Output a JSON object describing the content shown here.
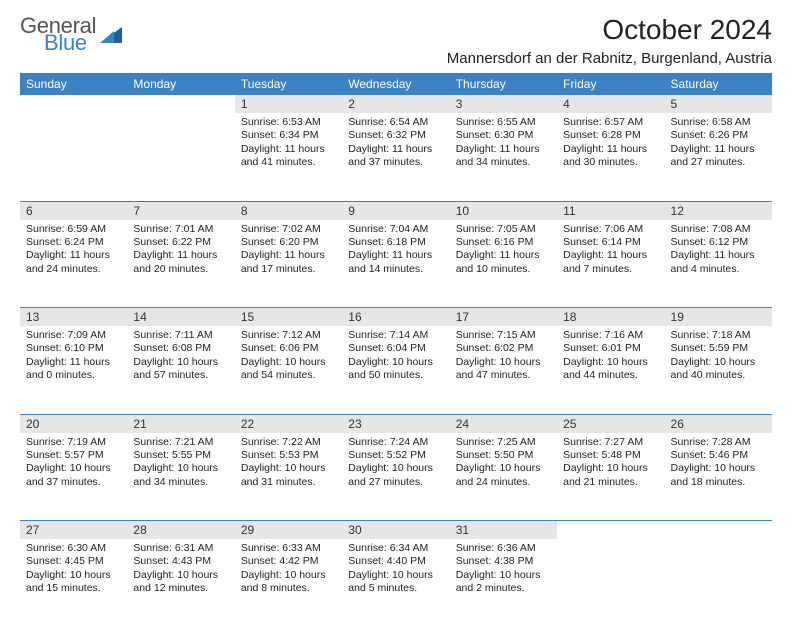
{
  "logo": {
    "general": "General",
    "blue": "Blue"
  },
  "colors": {
    "accent": "#3b82c4",
    "daynum_bg": "#e6e6e6",
    "text": "#222222",
    "bg": "#ffffff"
  },
  "title": "October 2024",
  "location": "Mannersdorf an der Rabnitz, Burgenland, Austria",
  "weekdays": [
    "Sunday",
    "Monday",
    "Tuesday",
    "Wednesday",
    "Thursday",
    "Friday",
    "Saturday"
  ],
  "weeks": [
    [
      null,
      null,
      {
        "n": "1",
        "sr": "Sunrise: 6:53 AM",
        "ss": "Sunset: 6:34 PM",
        "d1": "Daylight: 11 hours",
        "d2": "and 41 minutes."
      },
      {
        "n": "2",
        "sr": "Sunrise: 6:54 AM",
        "ss": "Sunset: 6:32 PM",
        "d1": "Daylight: 11 hours",
        "d2": "and 37 minutes."
      },
      {
        "n": "3",
        "sr": "Sunrise: 6:55 AM",
        "ss": "Sunset: 6:30 PM",
        "d1": "Daylight: 11 hours",
        "d2": "and 34 minutes."
      },
      {
        "n": "4",
        "sr": "Sunrise: 6:57 AM",
        "ss": "Sunset: 6:28 PM",
        "d1": "Daylight: 11 hours",
        "d2": "and 30 minutes."
      },
      {
        "n": "5",
        "sr": "Sunrise: 6:58 AM",
        "ss": "Sunset: 6:26 PM",
        "d1": "Daylight: 11 hours",
        "d2": "and 27 minutes."
      }
    ],
    [
      {
        "n": "6",
        "sr": "Sunrise: 6:59 AM",
        "ss": "Sunset: 6:24 PM",
        "d1": "Daylight: 11 hours",
        "d2": "and 24 minutes."
      },
      {
        "n": "7",
        "sr": "Sunrise: 7:01 AM",
        "ss": "Sunset: 6:22 PM",
        "d1": "Daylight: 11 hours",
        "d2": "and 20 minutes."
      },
      {
        "n": "8",
        "sr": "Sunrise: 7:02 AM",
        "ss": "Sunset: 6:20 PM",
        "d1": "Daylight: 11 hours",
        "d2": "and 17 minutes."
      },
      {
        "n": "9",
        "sr": "Sunrise: 7:04 AM",
        "ss": "Sunset: 6:18 PM",
        "d1": "Daylight: 11 hours",
        "d2": "and 14 minutes."
      },
      {
        "n": "10",
        "sr": "Sunrise: 7:05 AM",
        "ss": "Sunset: 6:16 PM",
        "d1": "Daylight: 11 hours",
        "d2": "and 10 minutes."
      },
      {
        "n": "11",
        "sr": "Sunrise: 7:06 AM",
        "ss": "Sunset: 6:14 PM",
        "d1": "Daylight: 11 hours",
        "d2": "and 7 minutes."
      },
      {
        "n": "12",
        "sr": "Sunrise: 7:08 AM",
        "ss": "Sunset: 6:12 PM",
        "d1": "Daylight: 11 hours",
        "d2": "and 4 minutes."
      }
    ],
    [
      {
        "n": "13",
        "sr": "Sunrise: 7:09 AM",
        "ss": "Sunset: 6:10 PM",
        "d1": "Daylight: 11 hours",
        "d2": "and 0 minutes."
      },
      {
        "n": "14",
        "sr": "Sunrise: 7:11 AM",
        "ss": "Sunset: 6:08 PM",
        "d1": "Daylight: 10 hours",
        "d2": "and 57 minutes."
      },
      {
        "n": "15",
        "sr": "Sunrise: 7:12 AM",
        "ss": "Sunset: 6:06 PM",
        "d1": "Daylight: 10 hours",
        "d2": "and 54 minutes."
      },
      {
        "n": "16",
        "sr": "Sunrise: 7:14 AM",
        "ss": "Sunset: 6:04 PM",
        "d1": "Daylight: 10 hours",
        "d2": "and 50 minutes."
      },
      {
        "n": "17",
        "sr": "Sunrise: 7:15 AM",
        "ss": "Sunset: 6:02 PM",
        "d1": "Daylight: 10 hours",
        "d2": "and 47 minutes."
      },
      {
        "n": "18",
        "sr": "Sunrise: 7:16 AM",
        "ss": "Sunset: 6:01 PM",
        "d1": "Daylight: 10 hours",
        "d2": "and 44 minutes."
      },
      {
        "n": "19",
        "sr": "Sunrise: 7:18 AM",
        "ss": "Sunset: 5:59 PM",
        "d1": "Daylight: 10 hours",
        "d2": "and 40 minutes."
      }
    ],
    [
      {
        "n": "20",
        "sr": "Sunrise: 7:19 AM",
        "ss": "Sunset: 5:57 PM",
        "d1": "Daylight: 10 hours",
        "d2": "and 37 minutes."
      },
      {
        "n": "21",
        "sr": "Sunrise: 7:21 AM",
        "ss": "Sunset: 5:55 PM",
        "d1": "Daylight: 10 hours",
        "d2": "and 34 minutes."
      },
      {
        "n": "22",
        "sr": "Sunrise: 7:22 AM",
        "ss": "Sunset: 5:53 PM",
        "d1": "Daylight: 10 hours",
        "d2": "and 31 minutes."
      },
      {
        "n": "23",
        "sr": "Sunrise: 7:24 AM",
        "ss": "Sunset: 5:52 PM",
        "d1": "Daylight: 10 hours",
        "d2": "and 27 minutes."
      },
      {
        "n": "24",
        "sr": "Sunrise: 7:25 AM",
        "ss": "Sunset: 5:50 PM",
        "d1": "Daylight: 10 hours",
        "d2": "and 24 minutes."
      },
      {
        "n": "25",
        "sr": "Sunrise: 7:27 AM",
        "ss": "Sunset: 5:48 PM",
        "d1": "Daylight: 10 hours",
        "d2": "and 21 minutes."
      },
      {
        "n": "26",
        "sr": "Sunrise: 7:28 AM",
        "ss": "Sunset: 5:46 PM",
        "d1": "Daylight: 10 hours",
        "d2": "and 18 minutes."
      }
    ],
    [
      {
        "n": "27",
        "sr": "Sunrise: 6:30 AM",
        "ss": "Sunset: 4:45 PM",
        "d1": "Daylight: 10 hours",
        "d2": "and 15 minutes."
      },
      {
        "n": "28",
        "sr": "Sunrise: 6:31 AM",
        "ss": "Sunset: 4:43 PM",
        "d1": "Daylight: 10 hours",
        "d2": "and 12 minutes."
      },
      {
        "n": "29",
        "sr": "Sunrise: 6:33 AM",
        "ss": "Sunset: 4:42 PM",
        "d1": "Daylight: 10 hours",
        "d2": "and 8 minutes."
      },
      {
        "n": "30",
        "sr": "Sunrise: 6:34 AM",
        "ss": "Sunset: 4:40 PM",
        "d1": "Daylight: 10 hours",
        "d2": "and 5 minutes."
      },
      {
        "n": "31",
        "sr": "Sunrise: 6:36 AM",
        "ss": "Sunset: 4:38 PM",
        "d1": "Daylight: 10 hours",
        "d2": "and 2 minutes."
      },
      null,
      null
    ]
  ]
}
